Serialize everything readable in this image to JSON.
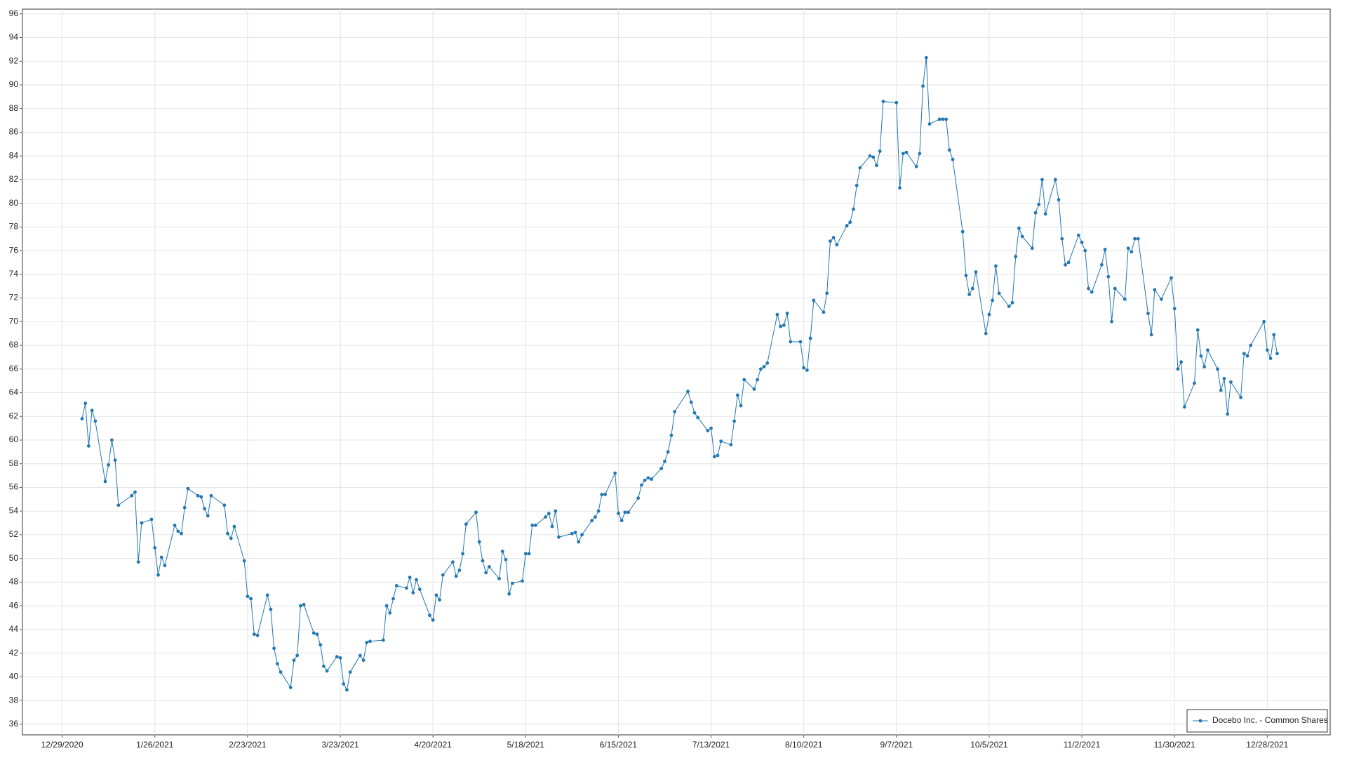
{
  "chart_data": {
    "type": "line",
    "x": [
      "1/4/2021",
      "1/5/2021",
      "1/6/2021",
      "1/7/2021",
      "1/8/2021",
      "1/11/2021",
      "1/12/2021",
      "1/13/2021",
      "1/14/2021",
      "1/15/2021",
      "1/19/2021",
      "1/20/2021",
      "1/21/2021",
      "1/22/2021",
      "1/25/2021",
      "1/26/2021",
      "1/27/2021",
      "1/28/2021",
      "1/29/2021",
      "2/1/2021",
      "2/2/2021",
      "2/3/2021",
      "2/4/2021",
      "2/5/2021",
      "2/8/2021",
      "2/9/2021",
      "2/10/2021",
      "2/11/2021",
      "2/12/2021",
      "2/16/2021",
      "2/17/2021",
      "2/18/2021",
      "2/19/2021",
      "2/22/2021",
      "2/23/2021",
      "2/24/2021",
      "2/25/2021",
      "2/26/2021",
      "3/1/2021",
      "3/2/2021",
      "3/3/2021",
      "3/4/2021",
      "3/5/2021",
      "3/8/2021",
      "3/9/2021",
      "3/10/2021",
      "3/11/2021",
      "3/12/2021",
      "3/15/2021",
      "3/16/2021",
      "3/17/2021",
      "3/18/2021",
      "3/19/2021",
      "3/22/2021",
      "3/23/2021",
      "3/24/2021",
      "3/25/2021",
      "3/26/2021",
      "3/29/2021",
      "3/30/2021",
      "3/31/2021",
      "4/1/2021",
      "4/5/2021",
      "4/6/2021",
      "4/7/2021",
      "4/8/2021",
      "4/9/2021",
      "4/12/2021",
      "4/13/2021",
      "4/14/2021",
      "4/15/2021",
      "4/16/2021",
      "4/19/2021",
      "4/20/2021",
      "4/21/2021",
      "4/22/2021",
      "4/23/2021",
      "4/26/2021",
      "4/27/2021",
      "4/28/2021",
      "4/29/2021",
      "4/30/2021",
      "5/3/2021",
      "5/4/2021",
      "5/5/2021",
      "5/6/2021",
      "5/7/2021",
      "5/10/2021",
      "5/11/2021",
      "5/12/2021",
      "5/13/2021",
      "5/14/2021",
      "5/17/2021",
      "5/18/2021",
      "5/19/2021",
      "5/20/2021",
      "5/21/2021",
      "5/24/2021",
      "5/25/2021",
      "5/26/2021",
      "5/27/2021",
      "5/28/2021",
      "6/1/2021",
      "6/2/2021",
      "6/3/2021",
      "6/4/2021",
      "6/7/2021",
      "6/8/2021",
      "6/9/2021",
      "6/10/2021",
      "6/11/2021",
      "6/14/2021",
      "6/15/2021",
      "6/16/2021",
      "6/17/2021",
      "6/18/2021",
      "6/21/2021",
      "6/22/2021",
      "6/23/2021",
      "6/24/2021",
      "6/25/2021",
      "6/28/2021",
      "6/29/2021",
      "6/30/2021",
      "7/1/2021",
      "7/2/2021",
      "7/6/2021",
      "7/7/2021",
      "7/8/2021",
      "7/9/2021",
      "7/12/2021",
      "7/13/2021",
      "7/14/2021",
      "7/15/2021",
      "7/16/2021",
      "7/19/2021",
      "7/20/2021",
      "7/21/2021",
      "7/22/2021",
      "7/23/2021",
      "7/26/2021",
      "7/27/2021",
      "7/28/2021",
      "7/29/2021",
      "7/30/2021",
      "8/2/2021",
      "8/3/2021",
      "8/4/2021",
      "8/5/2021",
      "8/6/2021",
      "8/9/2021",
      "8/10/2021",
      "8/11/2021",
      "8/12/2021",
      "8/13/2021",
      "8/16/2021",
      "8/17/2021",
      "8/18/2021",
      "8/19/2021",
      "8/20/2021",
      "8/23/2021",
      "8/24/2021",
      "8/25/2021",
      "8/26/2021",
      "8/27/2021",
      "8/30/2021",
      "8/31/2021",
      "9/1/2021",
      "9/2/2021",
      "9/3/2021",
      "9/7/2021",
      "9/8/2021",
      "9/9/2021",
      "9/10/2021",
      "9/13/2021",
      "9/14/2021",
      "9/15/2021",
      "9/16/2021",
      "9/17/2021",
      "9/20/2021",
      "9/21/2021",
      "9/22/2021",
      "9/23/2021",
      "9/24/2021",
      "9/27/2021",
      "9/28/2021",
      "9/29/2021",
      "9/30/2021",
      "10/1/2021",
      "10/4/2021",
      "10/5/2021",
      "10/6/2021",
      "10/7/2021",
      "10/8/2021",
      "10/11/2021",
      "10/12/2021",
      "10/13/2021",
      "10/14/2021",
      "10/15/2021",
      "10/18/2021",
      "10/19/2021",
      "10/20/2021",
      "10/21/2021",
      "10/22/2021",
      "10/25/2021",
      "10/26/2021",
      "10/27/2021",
      "10/28/2021",
      "10/29/2021",
      "11/1/2021",
      "11/2/2021",
      "11/3/2021",
      "11/4/2021",
      "11/5/2021",
      "11/8/2021",
      "11/9/2021",
      "11/10/2021",
      "11/11/2021",
      "11/12/2021",
      "11/15/2021",
      "11/16/2021",
      "11/17/2021",
      "11/18/2021",
      "11/19/2021",
      "11/22/2021",
      "11/23/2021",
      "11/24/2021",
      "11/26/2021",
      "11/29/2021",
      "11/30/2021",
      "12/1/2021",
      "12/2/2021",
      "12/3/2021",
      "12/6/2021",
      "12/7/2021",
      "12/8/2021",
      "12/9/2021",
      "12/10/2021",
      "12/13/2021",
      "12/14/2021",
      "12/15/2021",
      "12/16/2021",
      "12/17/2021",
      "12/20/2021",
      "12/21/2021",
      "12/22/2021",
      "12/23/2021",
      "12/27/2021",
      "12/28/2021",
      "12/29/2021",
      "12/30/2021",
      "12/31/2021"
    ],
    "series": [
      {
        "name": "Docebo Inc. - Common Shares",
        "color": "#2277b3",
        "values": [
          61.8,
          63.1,
          59.5,
          62.5,
          61.6,
          56.5,
          57.9,
          60.0,
          58.3,
          54.5,
          55.3,
          55.6,
          49.7,
          53.0,
          53.3,
          50.9,
          48.6,
          50.1,
          49.4,
          52.8,
          52.3,
          52.1,
          54.3,
          55.9,
          55.3,
          55.2,
          54.2,
          53.6,
          55.3,
          54.5,
          52.1,
          51.7,
          52.7,
          49.8,
          46.8,
          46.6,
          43.6,
          43.5,
          46.9,
          45.7,
          42.4,
          41.1,
          40.4,
          39.1,
          41.4,
          41.8,
          46.0,
          46.1,
          43.7,
          43.6,
          42.7,
          40.9,
          40.5,
          41.7,
          41.6,
          39.4,
          38.9,
          40.4,
          41.8,
          41.4,
          42.9,
          43.0,
          43.1,
          46.0,
          45.4,
          46.6,
          47.7,
          47.5,
          48.4,
          47.1,
          48.2,
          47.4,
          45.2,
          44.8,
          46.9,
          46.5,
          48.6,
          49.7,
          48.5,
          49.0,
          50.4,
          52.9,
          53.9,
          51.4,
          49.8,
          48.8,
          49.3,
          48.3,
          50.6,
          49.9,
          47.0,
          47.9,
          48.1,
          50.4,
          50.4,
          52.8,
          52.8,
          53.5,
          53.8,
          52.7,
          54.0,
          51.8,
          52.1,
          52.2,
          51.4,
          52.0,
          53.2,
          53.5,
          54.0,
          55.4,
          55.4,
          57.2,
          53.8,
          53.2,
          53.9,
          53.9,
          55.1,
          56.2,
          56.6,
          56.8,
          56.7,
          57.6,
          58.2,
          59.0,
          60.4,
          62.4,
          64.1,
          63.2,
          62.3,
          61.9,
          60.8,
          61.0,
          58.6,
          58.7,
          59.9,
          59.6,
          61.6,
          63.8,
          62.9,
          65.1,
          64.3,
          65.1,
          66.0,
          66.2,
          66.5,
          70.6,
          69.6,
          69.7,
          70.7,
          68.3,
          68.3,
          66.1,
          65.9,
          68.6,
          71.8,
          70.8,
          72.4,
          76.8,
          77.1,
          76.5,
          78.1,
          78.4,
          79.5,
          81.5,
          83.0,
          84.0,
          83.9,
          83.2,
          84.4,
          88.6,
          88.5,
          81.3,
          84.2,
          84.3,
          83.1,
          84.2,
          89.9,
          92.3,
          86.7,
          87.1,
          87.1,
          87.1,
          84.5,
          83.7,
          77.6,
          73.9,
          72.3,
          72.8,
          74.2,
          69.0,
          70.6,
          71.8,
          74.7,
          72.4,
          71.3,
          71.6,
          75.5,
          77.9,
          77.2,
          76.2,
          79.2,
          79.9,
          82.0,
          79.1,
          82.0,
          80.3,
          77.0,
          74.8,
          75.0,
          77.3,
          76.7,
          76.0,
          72.8,
          72.5,
          74.8,
          76.1,
          73.8,
          70.0,
          72.8,
          71.9,
          76.2,
          75.9,
          77.0,
          77.0,
          70.7,
          68.9,
          72.7,
          71.9,
          73.7,
          71.1,
          66.0,
          66.6,
          62.8,
          64.8,
          69.3,
          67.1,
          66.2,
          67.6,
          66.0,
          64.2,
          65.2,
          62.2,
          64.9,
          63.6,
          67.3,
          67.1,
          68.0,
          70.0,
          67.6,
          66.9,
          68.9,
          67.3
        ]
      }
    ],
    "xlim": [
      "12/17/2020",
      "1/16/2022"
    ],
    "xticks": [
      "12/29/2020",
      "1/26/2021",
      "2/23/2021",
      "3/23/2021",
      "4/20/2021",
      "5/18/2021",
      "6/15/2021",
      "7/13/2021",
      "8/10/2021",
      "9/7/2021",
      "10/5/2021",
      "11/2/2021",
      "11/30/2021",
      "12/28/2021"
    ],
    "ylim": [
      35.1,
      96.4
    ],
    "yticks": [
      36,
      38,
      40,
      42,
      44,
      46,
      48,
      50,
      52,
      54,
      56,
      58,
      60,
      62,
      64,
      66,
      68,
      70,
      72,
      74,
      76,
      78,
      80,
      82,
      84,
      86,
      88,
      90,
      92,
      94,
      96
    ],
    "grid": true,
    "legend": "lower right"
  }
}
